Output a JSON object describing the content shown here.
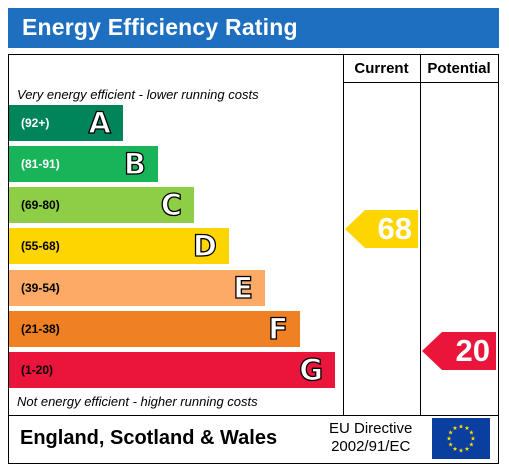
{
  "title": "Energy Efficiency Rating",
  "columns": {
    "current": "Current",
    "potential": "Potential"
  },
  "captions": {
    "top": "Very energy efficient - lower running costs",
    "bottom": "Not energy efficient - higher running costs"
  },
  "bands": [
    {
      "range": "(92+)",
      "letter": "A",
      "color": "#00855a",
      "range_color": "#ffffff"
    },
    {
      "range": "(81-91)",
      "letter": "B",
      "color": "#19b459",
      "range_color": "#ffffff"
    },
    {
      "range": "(69-80)",
      "letter": "C",
      "color": "#8dce46",
      "range_color": "#000000"
    },
    {
      "range": "(55-68)",
      "letter": "D",
      "color": "#ffd500",
      "range_color": "#000000"
    },
    {
      "range": "(39-54)",
      "letter": "E",
      "color": "#fcaa65",
      "range_color": "#000000"
    },
    {
      "range": "(21-38)",
      "letter": "F",
      "color": "#ef8023",
      "range_color": "#000000"
    },
    {
      "range": "(1-20)",
      "letter": "G",
      "color": "#e9153b",
      "range_color": "#000000"
    }
  ],
  "ratings": {
    "current": {
      "value": "68",
      "color": "#ffd500"
    },
    "potential": {
      "value": "20",
      "color": "#e9153b"
    }
  },
  "footer": {
    "region": "England, Scotland & Wales",
    "directive_line1": "EU Directive",
    "directive_line2": "2002/91/EC",
    "flag_icon": "eu-flag-icon"
  }
}
